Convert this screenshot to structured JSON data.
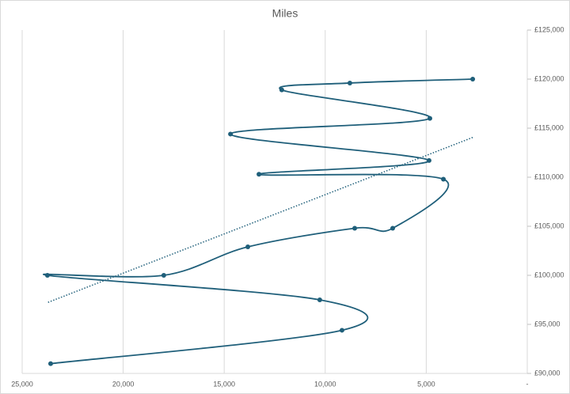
{
  "chart_data": {
    "type": "scatter",
    "title": "Miles",
    "x": [
      23590,
      9170,
      10270,
      23750,
      17990,
      13830,
      8540,
      6660,
      4150,
      13280,
      4860,
      14690,
      4820,
      12150,
      8780,
      2700
    ],
    "series": [
      {
        "name": "Miles",
        "color": "#1f5f7a",
        "values": [
          91000,
          94400,
          97500,
          100000,
          100000,
          102900,
          104800,
          104800,
          109800,
          110300,
          111700,
          114400,
          116000,
          118900,
          119600,
          120000
        ]
      }
    ],
    "xlim": [
      25000,
      0
    ],
    "xticks": [
      {
        "value": 25000,
        "label": "25,000"
      },
      {
        "value": 20000,
        "label": "20,000"
      },
      {
        "value": 15000,
        "label": "15,000"
      },
      {
        "value": 10000,
        "label": "10,000"
      },
      {
        "value": 5000,
        "label": "5,000"
      },
      {
        "value": 0,
        "label": "-"
      }
    ],
    "ylim": [
      90000,
      125000
    ],
    "yticks": [
      {
        "value": 90000,
        "label": "£90,000"
      },
      {
        "value": 95000,
        "label": "£95,000"
      },
      {
        "value": 100000,
        "label": "£100,000"
      },
      {
        "value": 105000,
        "label": "£105,000"
      },
      {
        "value": 110000,
        "label": "£110,000"
      },
      {
        "value": 115000,
        "label": "£115,000"
      },
      {
        "value": 120000,
        "label": "£120,000"
      },
      {
        "value": 125000,
        "label": "£125,000"
      }
    ],
    "y_axis_position": "right",
    "grid": "x",
    "smooth": true,
    "trendline": "linear"
  }
}
